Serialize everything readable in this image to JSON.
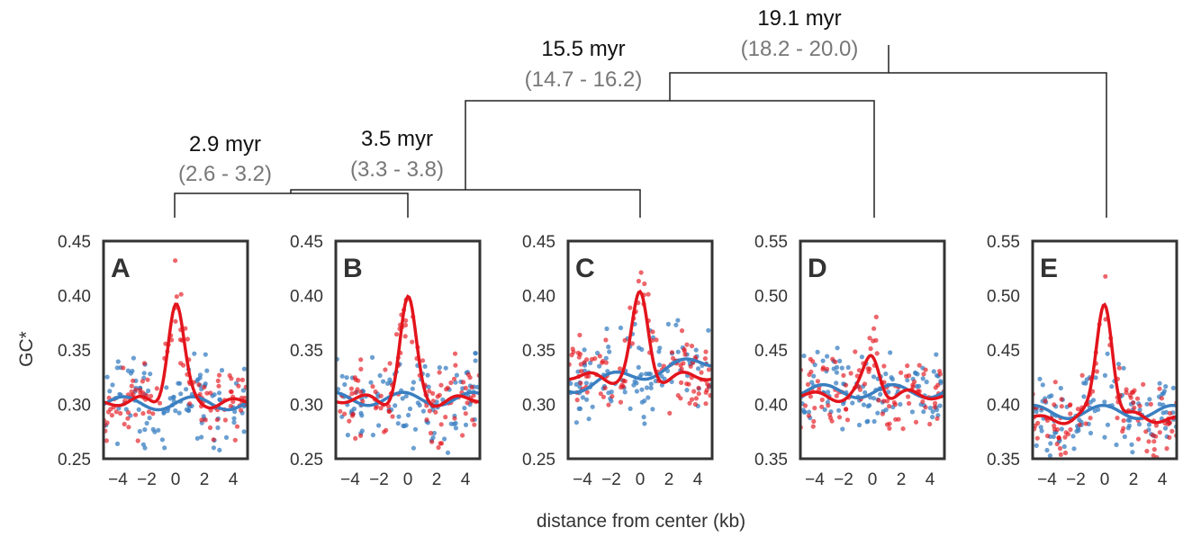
{
  "chart_data": {
    "type": "scatter",
    "ylabel": "GC*",
    "xlabel": "distance from center (kb)",
    "colors": {
      "red": "#e3141c",
      "blue": "#3a7fc1"
    },
    "tree": [
      {
        "age": "2.9 myr",
        "ci": "(2.6 - 3.2)"
      },
      {
        "age": "3.5 myr",
        "ci": "(3.3 - 3.8)"
      },
      {
        "age": "15.5 myr",
        "ci": "(14.7 - 16.2)"
      },
      {
        "age": "19.1 myr",
        "ci": "(18.2 - 20.0)"
      }
    ],
    "panels": [
      {
        "letter": "A",
        "xlim": [
          -5,
          5
        ],
        "ylim": [
          0.25,
          0.45
        ],
        "xticks": [
          "−4",
          "−2",
          "0",
          "2",
          "4"
        ],
        "xtick_values": [
          -4,
          -2,
          0,
          2,
          4
        ],
        "yticks": [
          "0.25",
          "0.30",
          "0.35",
          "0.40",
          "0.45"
        ],
        "ytick_values": [
          0.25,
          0.3,
          0.35,
          0.4,
          0.45
        ],
        "red_base": 0.302,
        "red_peak": 0.392,
        "blue_base": 0.301
      },
      {
        "letter": "B",
        "xlim": [
          -5,
          5
        ],
        "ylim": [
          0.25,
          0.45
        ],
        "xticks": [
          "−4",
          "−2",
          "0",
          "2",
          "4"
        ],
        "xtick_values": [
          -4,
          -2,
          0,
          2,
          4
        ],
        "yticks": [
          "0.25",
          "0.30",
          "0.35",
          "0.40",
          "0.45"
        ],
        "ytick_values": [
          0.25,
          0.3,
          0.35,
          0.4,
          0.45
        ],
        "red_base": 0.304,
        "red_peak": 0.393,
        "blue_base": 0.305
      },
      {
        "letter": "C",
        "xlim": [
          -5,
          5
        ],
        "ylim": [
          0.25,
          0.45
        ],
        "xticks": [
          "−4",
          "−2",
          "0",
          "2",
          "4"
        ],
        "xtick_values": [
          -4,
          -2,
          0,
          2,
          4
        ],
        "yticks": [
          "0.25",
          "0.30",
          "0.35",
          "0.40",
          "0.45"
        ],
        "ytick_values": [
          0.25,
          0.3,
          0.35,
          0.4,
          0.45
        ],
        "red_base": 0.325,
        "red_peak": 0.397,
        "blue_base": 0.328
      },
      {
        "letter": "D",
        "xlim": [
          -5,
          5
        ],
        "ylim": [
          0.35,
          0.55
        ],
        "xticks": [
          "−4",
          "−2",
          "0",
          "2",
          "4"
        ],
        "xtick_values": [
          -4,
          -2,
          0,
          2,
          4
        ],
        "yticks": [
          "0.35",
          "0.40",
          "0.45",
          "0.50",
          "0.55"
        ],
        "ytick_values": [
          0.35,
          0.4,
          0.45,
          0.5,
          0.55
        ],
        "red_base": 0.408,
        "red_peak": 0.443,
        "blue_base": 0.412
      },
      {
        "letter": "E",
        "xlim": [
          -5,
          5
        ],
        "ylim": [
          0.35,
          0.55
        ],
        "xticks": [
          "−4",
          "−2",
          "0",
          "2",
          "4"
        ],
        "xtick_values": [
          -4,
          -2,
          0,
          2,
          4
        ],
        "yticks": [
          "0.35",
          "0.40",
          "0.45",
          "0.50",
          "0.55"
        ],
        "ytick_values": [
          0.35,
          0.4,
          0.45,
          0.5,
          0.55
        ],
        "red_base": 0.387,
        "red_peak": 0.497,
        "blue_base": 0.393
      }
    ]
  }
}
